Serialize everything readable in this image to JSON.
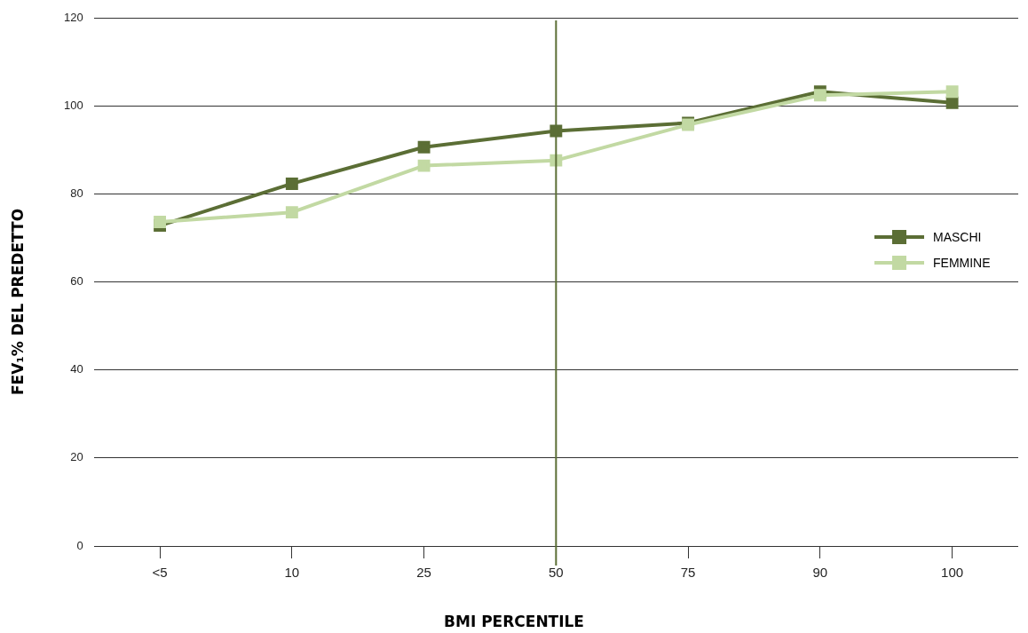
{
  "chart_data": {
    "type": "line",
    "xlabel": "BMI PERCENTILE",
    "ylabel": "FEV₁% DEL PREDETTO",
    "categories": [
      "<5",
      "10",
      "25",
      "50",
      "75",
      "90",
      "100"
    ],
    "series": [
      {
        "name": "MASCHI",
        "color": "#5b6e35",
        "values": [
          72.8,
          82.3,
          90.6,
          94.3,
          96.1,
          103.2,
          100.7
        ]
      },
      {
        "name": "FEMMINE",
        "color": "#c2d9a3",
        "values": [
          73.6,
          75.8,
          86.4,
          87.6,
          95.7,
          102.4,
          103.2
        ]
      }
    ],
    "ylim": [
      0,
      120
    ],
    "yticks": [
      0,
      20,
      40,
      60,
      80,
      100,
      120
    ],
    "grid": "y",
    "legend": "right",
    "marker": "square",
    "line_style": "solid",
    "ref_lines": [
      {
        "axis": "x",
        "value": "50",
        "color": "#5b6e35"
      }
    ]
  }
}
